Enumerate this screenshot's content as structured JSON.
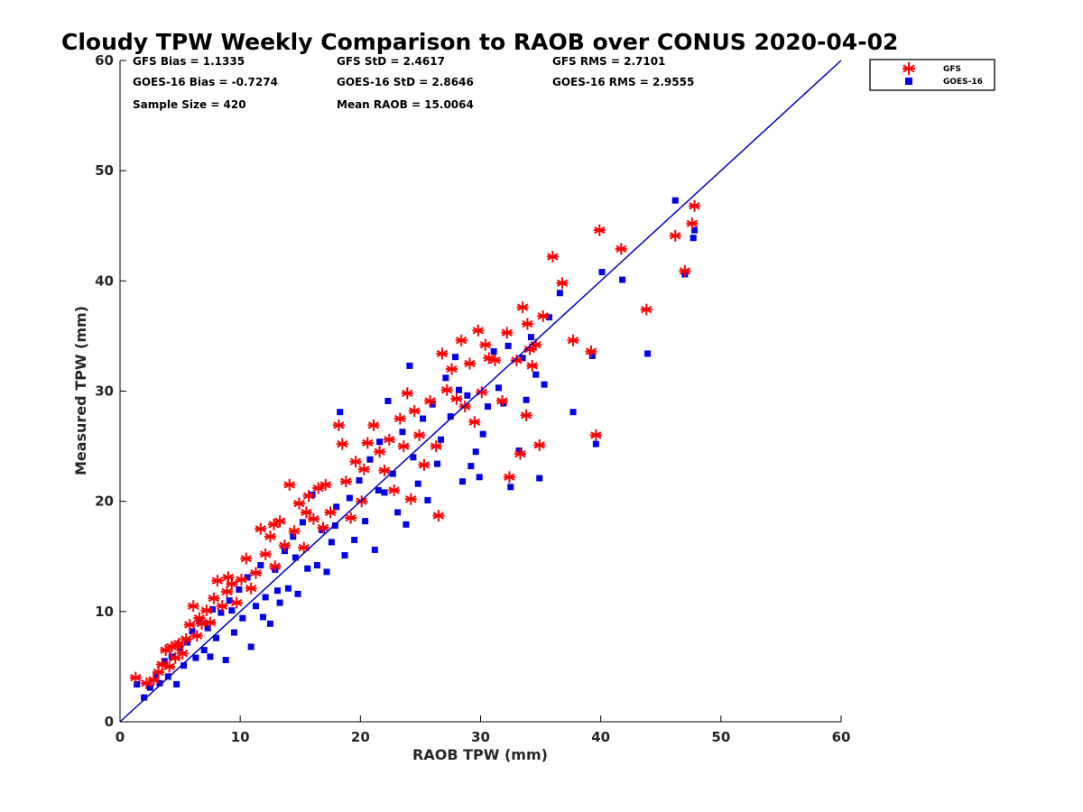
{
  "chart_data": {
    "type": "scatter",
    "title": "Cloudy TPW Weekly Comparison to RAOB over CONUS 2020-04-02",
    "xlabel": "RAOB TPW (mm)",
    "ylabel": "Measured TPW (mm)",
    "xlim": [
      0,
      60
    ],
    "ylim": [
      0,
      60
    ],
    "xticks": [
      "0",
      "10",
      "20",
      "30",
      "40",
      "50",
      "60"
    ],
    "yticks": [
      "0",
      "10",
      "20",
      "30",
      "40",
      "50",
      "60"
    ],
    "legend_position": "outside-top-right",
    "reference_line": {
      "type": "1:1 line",
      "x": [
        0,
        60
      ],
      "y": [
        0,
        60
      ],
      "color": "#0000cc"
    },
    "stats": [
      "GFS Bias = 1.1335",
      "GFS StD = 2.4617",
      "GFS RMS = 2.7101",
      "GOES-16 Bias = -0.7274",
      "GOES-16 StD = 2.8646",
      "GOES-16 RMS = 2.9555",
      "Sample Size = 420",
      "Mean RAOB = 15.0064"
    ],
    "series": [
      {
        "name": "GFS",
        "marker": "asterisk",
        "color": "#ff0000",
        "points": [
          [
            1.3,
            4.0
          ],
          [
            2.2,
            3.5
          ],
          [
            2.8,
            3.8
          ],
          [
            3.2,
            4.5
          ],
          [
            3.5,
            5.2
          ],
          [
            3.8,
            6.5
          ],
          [
            4.1,
            5.0
          ],
          [
            4.3,
            6.8
          ],
          [
            4.6,
            5.8
          ],
          [
            4.9,
            7.1
          ],
          [
            5.2,
            6.2
          ],
          [
            5.5,
            7.5
          ],
          [
            5.8,
            8.8
          ],
          [
            6.1,
            10.5
          ],
          [
            6.4,
            7.8
          ],
          [
            6.8,
            8.9
          ],
          [
            7.2,
            10.1
          ],
          [
            7.5,
            9.0
          ],
          [
            7.8,
            11.2
          ],
          [
            8.1,
            12.8
          ],
          [
            8.5,
            10.5
          ],
          [
            8.9,
            11.8
          ],
          [
            9.3,
            12.5
          ],
          [
            9.7,
            10.8
          ],
          [
            10.1,
            12.9
          ],
          [
            10.5,
            14.8
          ],
          [
            10.9,
            12.1
          ],
          [
            11.3,
            13.5
          ],
          [
            11.7,
            17.5
          ],
          [
            12.1,
            15.2
          ],
          [
            12.5,
            16.8
          ],
          [
            12.9,
            14.1
          ],
          [
            13.3,
            18.2
          ],
          [
            13.7,
            16.0
          ],
          [
            14.1,
            21.5
          ],
          [
            14.5,
            17.3
          ],
          [
            14.9,
            19.8
          ],
          [
            15.3,
            15.8
          ],
          [
            15.7,
            20.5
          ],
          [
            16.1,
            18.4
          ],
          [
            16.5,
            21.2
          ],
          [
            16.9,
            17.6
          ],
          [
            17.5,
            19.0
          ],
          [
            18.2,
            26.9
          ],
          [
            18.5,
            25.2
          ],
          [
            18.8,
            21.8
          ],
          [
            19.2,
            18.5
          ],
          [
            19.6,
            23.6
          ],
          [
            20.1,
            20.0
          ],
          [
            20.6,
            25.3
          ],
          [
            21.1,
            26.9
          ],
          [
            21.6,
            24.5
          ],
          [
            22.0,
            22.8
          ],
          [
            22.4,
            25.6
          ],
          [
            22.8,
            21.0
          ],
          [
            23.3,
            27.5
          ],
          [
            23.6,
            25.0
          ],
          [
            23.9,
            29.8
          ],
          [
            24.2,
            20.2
          ],
          [
            24.5,
            28.2
          ],
          [
            24.9,
            26.0
          ],
          [
            25.3,
            23.3
          ],
          [
            25.8,
            29.1
          ],
          [
            26.3,
            25.0
          ],
          [
            26.5,
            18.7
          ],
          [
            26.8,
            33.4
          ],
          [
            27.2,
            30.1
          ],
          [
            27.6,
            32.0
          ],
          [
            28.0,
            29.3
          ],
          [
            28.4,
            34.6
          ],
          [
            28.7,
            28.6
          ],
          [
            29.1,
            32.5
          ],
          [
            29.5,
            27.2
          ],
          [
            29.8,
            35.5
          ],
          [
            30.1,
            29.9
          ],
          [
            30.4,
            34.2
          ],
          [
            30.7,
            33.0
          ],
          [
            31.2,
            32.8
          ],
          [
            31.8,
            29.1
          ],
          [
            32.2,
            35.3
          ],
          [
            32.4,
            22.2
          ],
          [
            33.0,
            32.8
          ],
          [
            33.3,
            24.3
          ],
          [
            33.5,
            37.6
          ],
          [
            33.9,
            36.1
          ],
          [
            33.8,
            27.8
          ],
          [
            34.1,
            33.8
          ],
          [
            34.3,
            32.3
          ],
          [
            34.6,
            34.2
          ],
          [
            34.9,
            25.1
          ],
          [
            35.2,
            36.8
          ],
          [
            36.0,
            42.2
          ],
          [
            36.8,
            39.8
          ],
          [
            37.7,
            34.6
          ],
          [
            39.2,
            33.6
          ],
          [
            39.6,
            26.0
          ],
          [
            39.9,
            44.6
          ],
          [
            41.7,
            42.9
          ],
          [
            43.8,
            37.4
          ],
          [
            46.2,
            44.1
          ],
          [
            47.0,
            40.9
          ],
          [
            47.6,
            45.2
          ],
          [
            47.8,
            46.8
          ],
          [
            9.0,
            13.1
          ],
          [
            12.8,
            17.9
          ],
          [
            15.5,
            19.0
          ],
          [
            6.6,
            9.4
          ],
          [
            4.8,
            6.9
          ],
          [
            17.1,
            21.5
          ],
          [
            20.3,
            22.9
          ]
        ]
      },
      {
        "name": "GOES-16",
        "marker": "square",
        "color": "#0000ee",
        "points": [
          [
            1.4,
            3.4
          ],
          [
            2.0,
            2.2
          ],
          [
            2.5,
            3.1
          ],
          [
            3.0,
            4.2
          ],
          [
            3.3,
            3.5
          ],
          [
            3.7,
            5.5
          ],
          [
            4.0,
            4.1
          ],
          [
            4.3,
            5.9
          ],
          [
            4.7,
            3.4
          ],
          [
            5.0,
            6.7
          ],
          [
            5.3,
            5.1
          ],
          [
            5.6,
            7.2
          ],
          [
            6.0,
            8.2
          ],
          [
            6.3,
            5.8
          ],
          [
            6.6,
            9.1
          ],
          [
            7.0,
            6.5
          ],
          [
            7.3,
            8.5
          ],
          [
            7.7,
            10.2
          ],
          [
            8.0,
            7.6
          ],
          [
            8.4,
            9.9
          ],
          [
            8.8,
            5.6
          ],
          [
            9.1,
            11.0
          ],
          [
            9.5,
            8.1
          ],
          [
            9.9,
            12.0
          ],
          [
            10.2,
            9.4
          ],
          [
            10.6,
            13.1
          ],
          [
            10.9,
            6.8
          ],
          [
            11.3,
            10.5
          ],
          [
            11.7,
            14.2
          ],
          [
            12.1,
            11.3
          ],
          [
            12.5,
            8.9
          ],
          [
            12.9,
            13.8
          ],
          [
            13.3,
            10.8
          ],
          [
            13.7,
            15.5
          ],
          [
            14.0,
            12.1
          ],
          [
            14.4,
            16.8
          ],
          [
            14.8,
            11.6
          ],
          [
            15.2,
            18.1
          ],
          [
            15.6,
            13.9
          ],
          [
            16.0,
            20.6
          ],
          [
            16.4,
            14.2
          ],
          [
            16.8,
            17.4
          ],
          [
            17.2,
            13.6
          ],
          [
            17.6,
            16.3
          ],
          [
            18.0,
            19.5
          ],
          [
            18.3,
            28.1
          ],
          [
            18.7,
            15.1
          ],
          [
            19.1,
            20.3
          ],
          [
            19.5,
            16.5
          ],
          [
            19.9,
            21.9
          ],
          [
            20.4,
            18.2
          ],
          [
            20.8,
            23.8
          ],
          [
            21.2,
            15.6
          ],
          [
            21.6,
            25.4
          ],
          [
            22.0,
            20.8
          ],
          [
            22.3,
            29.1
          ],
          [
            22.7,
            22.5
          ],
          [
            23.1,
            19.0
          ],
          [
            23.5,
            26.3
          ],
          [
            23.8,
            17.9
          ],
          [
            24.1,
            32.3
          ],
          [
            24.4,
            24.0
          ],
          [
            24.8,
            21.6
          ],
          [
            25.2,
            27.5
          ],
          [
            25.6,
            20.1
          ],
          [
            26.0,
            28.8
          ],
          [
            26.4,
            23.4
          ],
          [
            26.7,
            25.6
          ],
          [
            27.1,
            31.2
          ],
          [
            27.5,
            27.7
          ],
          [
            27.9,
            33.1
          ],
          [
            28.2,
            30.1
          ],
          [
            28.5,
            21.8
          ],
          [
            28.9,
            29.6
          ],
          [
            29.2,
            23.2
          ],
          [
            29.6,
            24.5
          ],
          [
            29.9,
            22.2
          ],
          [
            30.2,
            26.1
          ],
          [
            30.6,
            28.6
          ],
          [
            31.1,
            33.6
          ],
          [
            31.5,
            30.3
          ],
          [
            31.9,
            28.9
          ],
          [
            32.3,
            34.1
          ],
          [
            32.5,
            21.3
          ],
          [
            33.2,
            24.6
          ],
          [
            33.5,
            33.0
          ],
          [
            33.8,
            29.2
          ],
          [
            34.2,
            34.9
          ],
          [
            34.6,
            31.5
          ],
          [
            34.9,
            22.1
          ],
          [
            35.3,
            30.6
          ],
          [
            35.7,
            36.7
          ],
          [
            36.6,
            38.9
          ],
          [
            37.7,
            28.1
          ],
          [
            39.3,
            33.2
          ],
          [
            39.6,
            25.2
          ],
          [
            40.1,
            40.8
          ],
          [
            41.8,
            40.1
          ],
          [
            43.9,
            33.4
          ],
          [
            46.2,
            47.3
          ],
          [
            47.0,
            40.6
          ],
          [
            47.7,
            43.9
          ],
          [
            47.8,
            44.6
          ],
          [
            9.3,
            10.1
          ],
          [
            11.9,
            9.5
          ],
          [
            14.6,
            14.9
          ],
          [
            13.1,
            11.9
          ],
          [
            17.9,
            17.8
          ],
          [
            21.5,
            21.0
          ],
          [
            7.5,
            5.9
          ]
        ]
      }
    ]
  },
  "legend": {
    "items": [
      {
        "label": "GFS",
        "marker": "asterisk",
        "color": "#ff0000"
      },
      {
        "label": "GOES-16",
        "marker": "square",
        "color": "#0000ee"
      }
    ]
  }
}
